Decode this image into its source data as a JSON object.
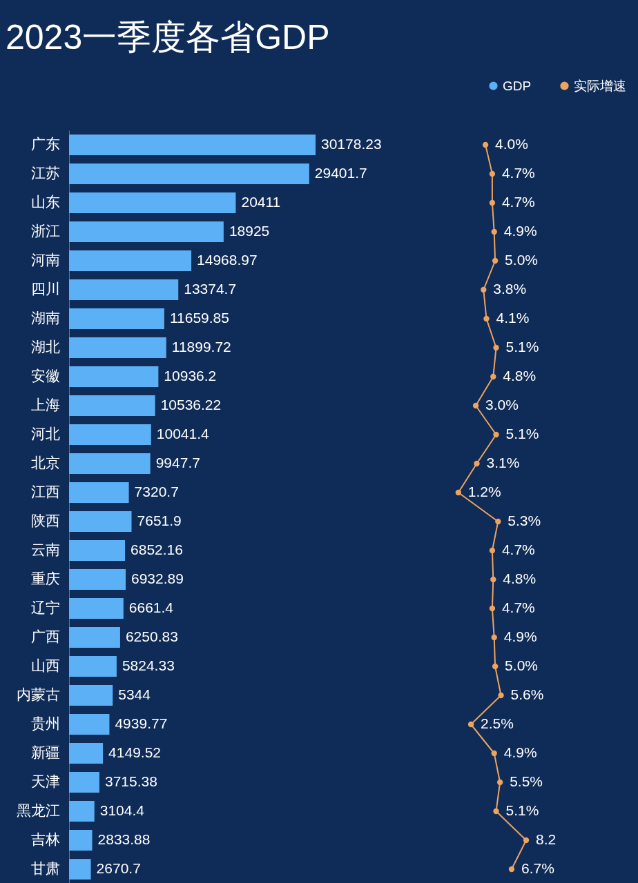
{
  "chart_data": [
    {
      "type": "bar",
      "orientation": "horizontal",
      "title": "2023一季度各省GDP",
      "categories": [
        "广东",
        "江苏",
        "山东",
        "浙江",
        "河南",
        "四川",
        "湖南",
        "湖北",
        "安徽",
        "上海",
        "河北",
        "北京",
        "江西",
        "陕西",
        "云南",
        "重庆",
        "辽宁",
        "广西",
        "山西",
        "内蒙古",
        "贵州",
        "新疆",
        "天津",
        "黑龙江",
        "吉林",
        "甘肃"
      ],
      "series": [
        {
          "name": "GDP",
          "color": "#5cb0f5",
          "values": [
            30178.23,
            29401.7,
            20411,
            18925,
            14968.97,
            13374.7,
            11659.85,
            11899.72,
            10936.2,
            10536.22,
            10041.4,
            9947.7,
            7320.7,
            7651.9,
            6852.16,
            6932.89,
            6661.4,
            6250.83,
            5824.33,
            5344,
            4939.77,
            4149.52,
            3715.38,
            3104.4,
            2833.88,
            2670.7
          ],
          "value_labels": [
            "30178.23",
            "29401.7",
            "20411",
            "18925",
            "14968.97",
            "13374.7",
            "11659.85",
            "11899.72",
            "10936.2",
            "10536.22",
            "10041.4",
            "9947.7",
            "7320.7",
            "7651.9",
            "6852.16",
            "6932.89",
            "6661.4",
            "6250.83",
            "5824.33",
            "5344",
            "4939.77",
            "4149.52",
            "3715.38",
            "3104.4",
            "2833.88",
            "2670.7"
          ]
        }
      ],
      "legend": "top right",
      "tick_labels": "y"
    },
    {
      "type": "line",
      "orientation": "horizontal",
      "categories": [
        null,
        null,
        null,
        null,
        null,
        null,
        null,
        null,
        null,
        null,
        null,
        null,
        null,
        null,
        null,
        null,
        null,
        null,
        null,
        null,
        null,
        null,
        null,
        null,
        null,
        null
      ],
      "series": [
        {
          "name": "实际增速",
          "color": "#eea35f",
          "values": [
            4.0,
            4.7,
            4.7,
            4.9,
            5.0,
            3.8,
            4.1,
            5.1,
            4.8,
            3.0,
            5.1,
            3.1,
            1.2,
            5.3,
            4.7,
            4.8,
            4.7,
            4.9,
            5.0,
            5.6,
            2.5,
            4.9,
            5.5,
            5.1,
            8.2,
            6.7
          ],
          "value_labels": [
            "4.0%",
            "4.7%",
            "4.7%",
            "4.9%",
            "5.0%",
            "3.8%",
            "4.1%",
            "5.1%",
            "4.8%",
            "3.0%",
            "5.1%",
            "3.1%",
            "1.2%",
            "5.3%",
            "4.7%",
            "4.8%",
            "4.7%",
            "4.9%",
            "5.0%",
            "5.6%",
            "2.5%",
            "4.9%",
            "5.5%",
            "5.1%",
            "8.2",
            "6.7%"
          ]
        }
      ],
      "legend": "top right",
      "marker": "circle",
      "line_style": "solid",
      "tick_labels": false
    }
  ]
}
